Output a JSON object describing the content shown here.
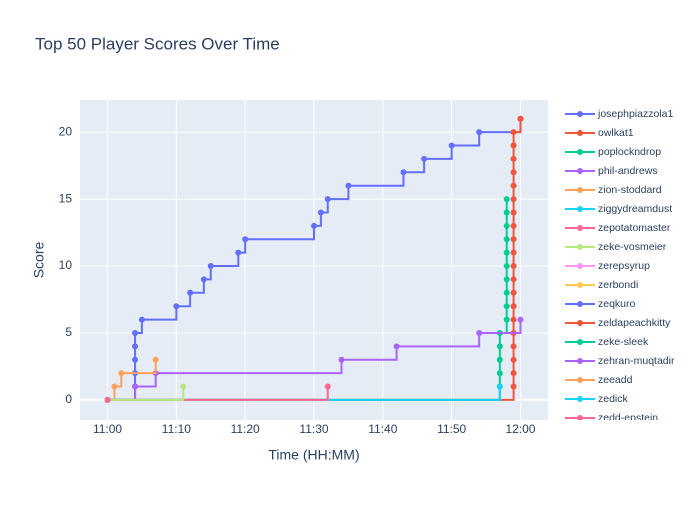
{
  "chart_data": {
    "type": "line",
    "shape": "step",
    "title": "Top 50 Player Scores Over Time",
    "x_label": "Time (HH:MM)",
    "y_label": "Score",
    "xlim": [
      "10:56",
      "12:04"
    ],
    "xticks": [
      "11:00",
      "11:10",
      "11:20",
      "11:30",
      "11:40",
      "11:50",
      "12:00"
    ],
    "ylim": [
      -1.5,
      22.4
    ],
    "yticks": [
      0,
      5,
      10,
      15,
      20
    ],
    "grid": true,
    "legend": "right",
    "series": [
      {
        "name": "josephpiazzola1",
        "color": "#636efa",
        "x": [
          "11:00",
          "11:04",
          "11:04",
          "11:04",
          "11:04",
          "11:04",
          "11:05",
          "11:10",
          "11:12",
          "11:14",
          "11:15",
          "11:19",
          "11:20",
          "11:30",
          "11:31",
          "11:32",
          "11:35",
          "11:43",
          "11:46",
          "11:50",
          "11:54",
          "12:00"
        ],
        "values": [
          0,
          1,
          2,
          3,
          4,
          5,
          6,
          7,
          8,
          9,
          10,
          11,
          12,
          13,
          14,
          15,
          16,
          17,
          18,
          19,
          20,
          21
        ]
      },
      {
        "name": "owlkat1",
        "color": "#EF553B",
        "x": [
          "11:00",
          "11:59",
          "11:59",
          "11:59",
          "11:59",
          "11:59",
          "11:59",
          "11:59",
          "11:59",
          "11:59",
          "11:59",
          "11:59",
          "11:59",
          "11:59",
          "11:59",
          "11:59",
          "11:59",
          "11:59",
          "11:59",
          "11:59",
          "11:59",
          "12:00"
        ],
        "values": [
          0,
          1,
          2,
          3,
          4,
          5,
          6,
          7,
          8,
          9,
          10,
          11,
          12,
          13,
          14,
          15,
          16,
          17,
          18,
          19,
          20,
          21
        ]
      },
      {
        "name": "poplockndrop",
        "color": "#00cc96",
        "x": [
          "11:00",
          "11:57",
          "11:57",
          "11:57",
          "11:57",
          "11:57",
          "11:58",
          "11:58",
          "11:58",
          "11:58",
          "11:58",
          "11:58",
          "11:58",
          "11:58",
          "11:58",
          "11:58"
        ],
        "values": [
          0,
          1,
          2,
          3,
          4,
          5,
          6,
          7,
          8,
          9,
          10,
          11,
          12,
          13,
          14,
          15
        ]
      },
      {
        "name": "phil-andrews",
        "color": "#ab63fa",
        "x": [
          "11:00",
          "11:04",
          "11:07",
          "11:34",
          "11:42",
          "11:54",
          "12:00"
        ],
        "values": [
          0,
          1,
          2,
          3,
          4,
          5,
          6
        ]
      },
      {
        "name": "zion-stoddard",
        "color": "#FFA15A",
        "x": [
          "11:00",
          "11:01",
          "11:02",
          "11:07"
        ],
        "values": [
          0,
          1,
          2,
          3
        ]
      },
      {
        "name": "ziggydreamdust",
        "color": "#19d3f3",
        "x": [
          "11:00",
          "11:57"
        ],
        "values": [
          0,
          1
        ]
      },
      {
        "name": "zepotatomaster",
        "color": "#FF6692",
        "x": [
          "11:00",
          "11:32"
        ],
        "values": [
          0,
          1
        ]
      },
      {
        "name": "zeke-vosmeier",
        "color": "#B6E880",
        "x": [
          "11:00",
          "11:11"
        ],
        "values": [
          0,
          1
        ]
      },
      {
        "name": "zerepsyrup",
        "color": "#FF97FF",
        "x": [
          "11:00"
        ],
        "values": [
          0
        ]
      },
      {
        "name": "zerbondi",
        "color": "#FECB52",
        "x": [
          "11:00"
        ],
        "values": [
          0
        ]
      },
      {
        "name": "zeqkuro",
        "color": "#636efa",
        "x": [
          "11:00"
        ],
        "values": [
          0
        ]
      },
      {
        "name": "zeldapeachkitty",
        "color": "#EF553B",
        "x": [
          "11:00"
        ],
        "values": [
          0
        ]
      },
      {
        "name": "zeke-sleek",
        "color": "#00cc96",
        "x": [
          "11:00"
        ],
        "values": [
          0
        ]
      },
      {
        "name": "zehran-muqtadir",
        "color": "#ab63fa",
        "x": [
          "11:00"
        ],
        "values": [
          0
        ]
      },
      {
        "name": "zeeadd",
        "color": "#FFA15A",
        "x": [
          "11:00"
        ],
        "values": [
          0
        ]
      },
      {
        "name": "zedick",
        "color": "#19d3f3",
        "x": [
          "11:00"
        ],
        "values": [
          0
        ]
      },
      {
        "name": "zedd-epstein",
        "color": "#FF6692",
        "x": [
          "11:00"
        ],
        "values": [
          0
        ]
      }
    ]
  }
}
